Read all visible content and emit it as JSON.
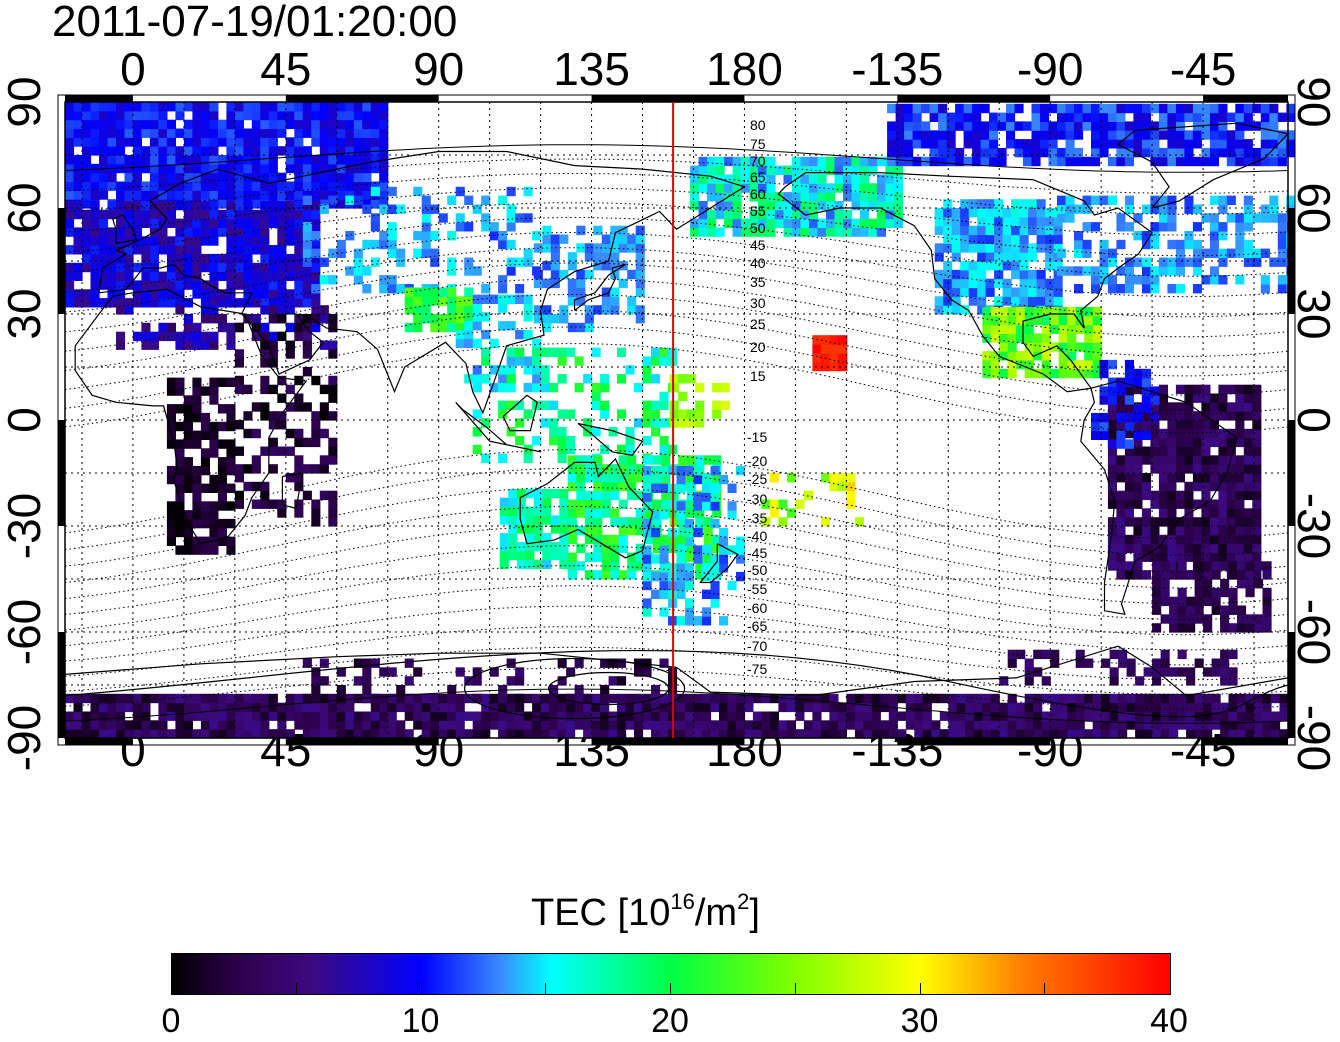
{
  "map": {
    "title": "2011-07-19/01:20:00",
    "lon_ticks": [
      "0",
      "45",
      "90",
      "135",
      "180",
      "-135",
      "-90",
      "-45"
    ],
    "lat_ticks_left": [
      "90",
      "60",
      "30",
      "0",
      "-30",
      "-60",
      "-90"
    ],
    "lat_ticks_right": [
      "90",
      "60",
      "30",
      "0",
      "-30",
      "-60",
      "-90"
    ],
    "contour_labels_north": [
      "80",
      "75",
      "70",
      "65",
      "60",
      "55",
      "50",
      "45",
      "40",
      "35",
      "30",
      "25",
      "20",
      "15"
    ],
    "contour_labels_south": [
      "-15",
      "-20",
      "-25",
      "-30",
      "-35",
      "-40",
      "-45",
      "-50",
      "-55",
      "-60",
      "-65",
      "-70",
      "-75"
    ],
    "longitude_range": [
      -20,
      340
    ],
    "latitude_range": [
      -90,
      90
    ],
    "grid": "dotted every 15 degrees",
    "marker_line": {
      "longitude": 159,
      "color": "#e00000"
    },
    "colors": {
      "frame": "#000000",
      "coastline": "#000000",
      "marker": "#e00000"
    }
  },
  "colorbar": {
    "label_prefix": "TEC  [10",
    "label_exp": "16",
    "label_mid": "/m",
    "label_exp2": "2",
    "label_suffix": "]",
    "ticks": [
      "0",
      "10",
      "20",
      "30",
      "40"
    ],
    "range": [
      0,
      40
    ],
    "colors": [
      "#000000",
      "#3c0a80",
      "#0000ff",
      "#00ffff",
      "#00ff44",
      "#ffff00",
      "#ff8000",
      "#ff0000"
    ]
  }
}
